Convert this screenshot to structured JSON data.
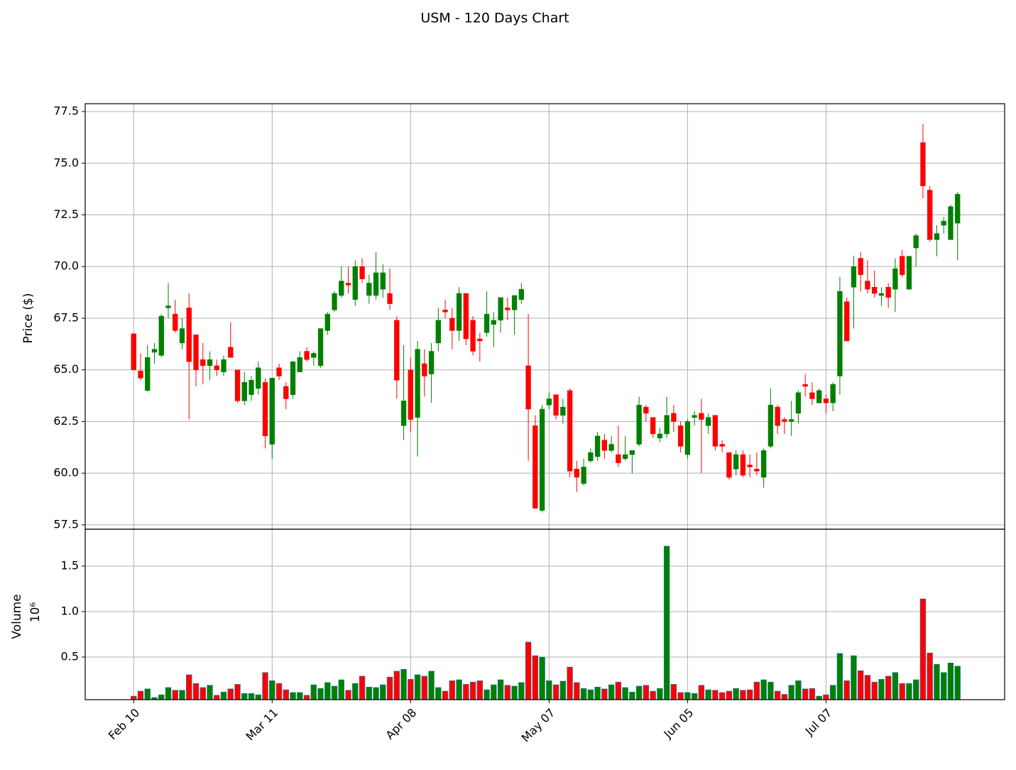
{
  "chart_data": {
    "type": "candlestick",
    "title": "USM - 120 Days Chart",
    "ylabel": "Price ($)",
    "volume_ylabel": "Volume",
    "volume_offset": "10⁶",
    "up_color": "#008000",
    "down_color": "#ff0000",
    "grid": true,
    "xlim": [
      -7,
      125.8
    ],
    "xticks": [
      {
        "value": 0,
        "label": "Feb 10"
      },
      {
        "value": 20,
        "label": "Mar 11"
      },
      {
        "value": 40,
        "label": "Apr 08"
      },
      {
        "value": 60,
        "label": "May 07"
      },
      {
        "value": 80,
        "label": "Jun 05"
      },
      {
        "value": 100,
        "label": "Jul 07"
      }
    ],
    "ylim": [
      57.29,
      77.88
    ],
    "yticks": [
      57.5,
      {
        "value": 60,
        "label": "60.0"
      },
      62.5,
      {
        "value": 65,
        "label": "65.0"
      },
      67.5,
      {
        "value": 70,
        "label": "70.0"
      },
      72.5,
      {
        "value": 75,
        "label": "75.0"
      },
      77.5
    ],
    "volume_ylim": [
      0.031,
      1.906
    ],
    "volume_yticks": [
      0.5,
      {
        "value": 1,
        "label": "1.0"
      },
      1.5
    ],
    "open": [
      66.75,
      64.95,
      64.0,
      65.85,
      65.7,
      68.0,
      67.7,
      66.3,
      68.0,
      66.7,
      65.5,
      65.2,
      65.2,
      64.9,
      66.1,
      65.0,
      63.5,
      63.8,
      64.1,
      64.4,
      61.4,
      65.1,
      64.2,
      63.8,
      64.9,
      65.9,
      65.6,
      65.2,
      66.9,
      67.9,
      68.6,
      69.2,
      68.4,
      70.0,
      68.6,
      68.6,
      68.9,
      68.7,
      67.4,
      62.3,
      65.0,
      62.7,
      65.3,
      64.8,
      66.3,
      67.9,
      67.5,
      66.9,
      68.7,
      67.4,
      66.5,
      66.8,
      67.2,
      67.4,
      68.0,
      67.9,
      68.4,
      65.2,
      62.3,
      58.2,
      63.3,
      63.8,
      62.8,
      64.0,
      60.2,
      59.5,
      60.6,
      60.8,
      61.6,
      61.1,
      60.9,
      60.7,
      60.9,
      61.4,
      63.2,
      62.7,
      61.7,
      61.9,
      62.9,
      62.3,
      60.9,
      62.7,
      62.9,
      62.3,
      62.8,
      61.4,
      61.0,
      60.2,
      60.9,
      60.4,
      60.2,
      59.8,
      61.3,
      63.2,
      62.6,
      62.5,
      62.9,
      64.3,
      63.9,
      63.4,
      63.6,
      63.4,
      64.7,
      68.3,
      69.0,
      70.4,
      69.3,
      69.0,
      68.6,
      69.0,
      68.9,
      70.5,
      68.9,
      70.9,
      76.0,
      73.7,
      71.3,
      72.0,
      71.3,
      72.1
    ],
    "high": [
      66.75,
      65.8,
      66.2,
      66.3,
      67.7,
      69.2,
      68.4,
      67.5,
      68.7,
      66.7,
      66.3,
      65.9,
      65.5,
      65.7,
      67.3,
      65.0,
      64.9,
      64.7,
      65.4,
      64.6,
      64.6,
      65.3,
      64.4,
      65.4,
      65.9,
      66.1,
      65.9,
      67.0,
      67.8,
      68.8,
      70.0,
      70.0,
      70.3,
      70.4,
      69.6,
      70.7,
      70.1,
      69.9,
      67.6,
      66.2,
      65.6,
      66.4,
      66.0,
      66.3,
      68.0,
      68.4,
      68.0,
      69.0,
      68.7,
      67.6,
      66.8,
      68.8,
      67.8,
      68.5,
      68.5,
      68.6,
      69.2,
      67.7,
      62.8,
      63.3,
      63.9,
      63.8,
      63.6,
      64.1,
      60.6,
      60.7,
      61.2,
      62.0,
      61.9,
      61.8,
      62.3,
      61.8,
      61.1,
      63.7,
      63.3,
      62.7,
      62.2,
      63.7,
      63.3,
      62.5,
      62.6,
      63.0,
      63.6,
      62.9,
      62.8,
      61.6,
      61.0,
      61.1,
      61.1,
      60.9,
      61.0,
      61.2,
      64.1,
      63.3,
      62.7,
      63.5,
      64.0,
      64.8,
      64.4,
      64.1,
      63.8,
      64.4,
      69.5,
      68.5,
      70.5,
      70.7,
      70.3,
      69.8,
      69.0,
      69.2,
      70.4,
      70.8,
      70.5,
      71.6,
      76.9,
      73.9,
      72.0,
      72.4,
      73.0,
      73.6
    ],
    "low": [
      65.0,
      64.5,
      63.95,
      65.3,
      65.6,
      67.5,
      66.8,
      66.0,
      62.6,
      64.2,
      64.3,
      64.5,
      64.7,
      64.7,
      65.6,
      63.4,
      63.3,
      63.5,
      63.8,
      61.2,
      60.7,
      64.5,
      63.1,
      63.6,
      64.9,
      65.4,
      65.2,
      65.1,
      66.7,
      67.8,
      68.5,
      68.7,
      68.1,
      69.2,
      68.2,
      68.4,
      68.5,
      67.9,
      63.6,
      61.6,
      62.0,
      60.8,
      63.7,
      63.4,
      65.9,
      67.5,
      66.0,
      66.4,
      66.2,
      65.7,
      65.4,
      66.6,
      66.1,
      66.8,
      67.4,
      66.7,
      68.2,
      60.6,
      58.3,
      58.1,
      63.1,
      62.6,
      62.4,
      59.8,
      59.1,
      59.4,
      60.5,
      60.6,
      60.7,
      61.0,
      60.3,
      60.6,
      60.0,
      61.3,
      62.5,
      61.7,
      61.5,
      61.7,
      62.0,
      61.0,
      60.7,
      62.3,
      60.0,
      61.9,
      61.1,
      61.0,
      59.7,
      59.9,
      59.8,
      59.8,
      59.9,
      59.3,
      61.2,
      61.9,
      61.9,
      61.8,
      62.4,
      63.7,
      63.3,
      63.4,
      62.9,
      63.0,
      63.8,
      66.4,
      67.0,
      68.8,
      68.7,
      68.5,
      68.1,
      68.0,
      67.8,
      69.5,
      68.9,
      70.0,
      73.3,
      71.2,
      70.5,
      71.6,
      71.3,
      70.3
    ],
    "close": [
      65.0,
      64.6,
      65.6,
      66.0,
      67.6,
      68.1,
      66.9,
      67.0,
      65.4,
      65.0,
      65.2,
      65.5,
      65.0,
      65.5,
      65.6,
      63.5,
      64.4,
      64.5,
      65.1,
      61.8,
      64.6,
      64.7,
      63.6,
      65.4,
      65.6,
      65.5,
      65.8,
      67.0,
      67.7,
      68.7,
      69.3,
      69.1,
      70.0,
      69.4,
      69.2,
      69.7,
      69.7,
      68.2,
      64.5,
      63.5,
      62.6,
      66.0,
      64.7,
      65.9,
      67.4,
      67.8,
      66.9,
      68.7,
      66.5,
      65.9,
      66.4,
      67.7,
      67.4,
      68.5,
      67.9,
      68.6,
      68.9,
      63.1,
      58.3,
      63.1,
      63.6,
      62.8,
      63.2,
      60.1,
      59.8,
      60.3,
      61.0,
      61.8,
      61.1,
      61.4,
      60.5,
      60.9,
      61.1,
      63.3,
      62.9,
      61.9,
      61.9,
      62.8,
      62.5,
      61.3,
      62.5,
      62.8,
      62.6,
      62.7,
      61.3,
      61.3,
      59.8,
      60.9,
      59.9,
      60.3,
      60.1,
      61.1,
      63.3,
      62.3,
      62.5,
      62.6,
      63.9,
      64.2,
      63.6,
      64.0,
      63.4,
      64.3,
      68.8,
      66.4,
      70.0,
      69.6,
      68.9,
      68.7,
      68.7,
      68.5,
      69.9,
      69.6,
      70.5,
      71.5,
      73.9,
      71.3,
      71.6,
      72.2,
      72.9,
      73.5
    ],
    "volume": [
      0.07,
      0.125,
      0.15,
      0.055,
      0.085,
      0.165,
      0.135,
      0.135,
      0.305,
      0.21,
      0.165,
      0.19,
      0.08,
      0.115,
      0.15,
      0.2,
      0.1,
      0.1,
      0.085,
      0.33,
      0.24,
      0.21,
      0.14,
      0.11,
      0.11,
      0.08,
      0.195,
      0.155,
      0.22,
      0.18,
      0.25,
      0.135,
      0.21,
      0.29,
      0.17,
      0.165,
      0.195,
      0.28,
      0.345,
      0.365,
      0.255,
      0.305,
      0.29,
      0.345,
      0.165,
      0.125,
      0.24,
      0.25,
      0.2,
      0.225,
      0.24,
      0.14,
      0.195,
      0.25,
      0.19,
      0.18,
      0.22,
      0.665,
      0.515,
      0.5,
      0.24,
      0.195,
      0.235,
      0.39,
      0.22,
      0.155,
      0.14,
      0.17,
      0.15,
      0.195,
      0.225,
      0.165,
      0.115,
      0.18,
      0.19,
      0.125,
      0.155,
      1.72,
      0.2,
      0.11,
      0.11,
      0.1,
      0.19,
      0.14,
      0.135,
      0.11,
      0.125,
      0.155,
      0.135,
      0.14,
      0.225,
      0.25,
      0.225,
      0.125,
      0.09,
      0.19,
      0.24,
      0.15,
      0.155,
      0.07,
      0.085,
      0.19,
      0.54,
      0.24,
      0.515,
      0.35,
      0.3,
      0.225,
      0.255,
      0.29,
      0.33,
      0.21,
      0.21,
      0.25,
      1.14,
      0.545,
      0.42,
      0.33,
      0.435,
      0.4
    ]
  }
}
